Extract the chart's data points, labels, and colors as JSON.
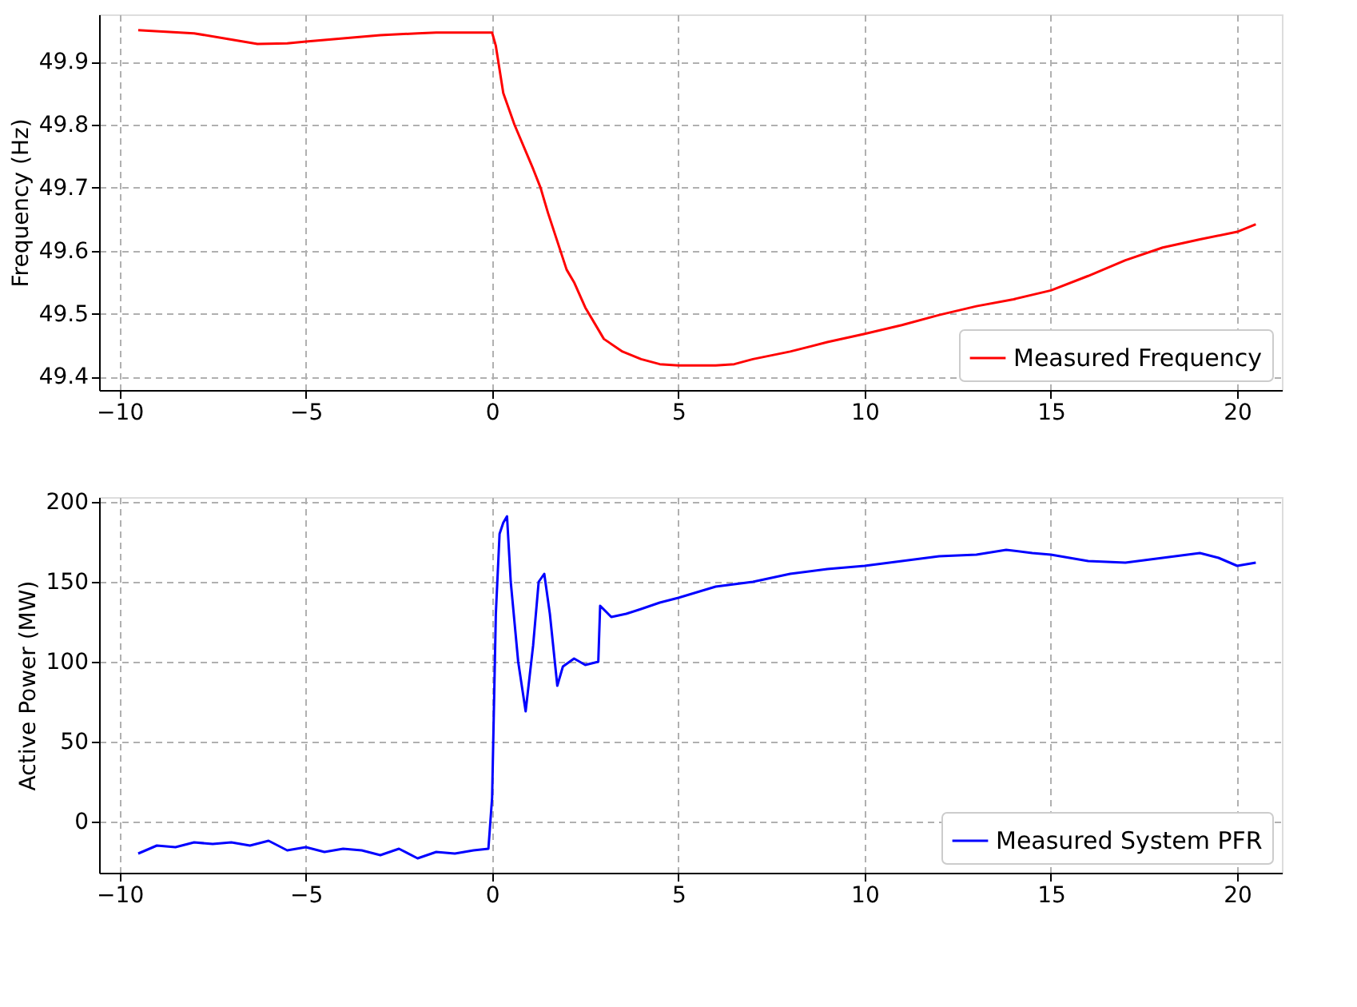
{
  "chart_data": [
    {
      "type": "line",
      "ylabel": "Frequency (Hz)",
      "xlim": [
        -10.55,
        21.2
      ],
      "xticks": [
        -10,
        -5,
        0,
        5,
        10,
        15,
        20
      ],
      "ylim": [
        49.379,
        49.975
      ],
      "yticks": [
        49.4,
        49.5,
        49.6,
        49.7,
        49.8,
        49.9
      ],
      "grid": true,
      "legend": "bottom right",
      "line_style": "solid",
      "series": [
        {
          "name": "Measured Frequency",
          "color": "#ff0000",
          "x": [
            -9.5,
            -8,
            -7,
            -6.3,
            -5.5,
            -5,
            -4,
            -3,
            -2,
            -1.5,
            -0.5,
            0,
            0.1,
            0.3,
            0.6,
            1.1,
            1.3,
            1.5,
            2,
            2.2,
            2.5,
            3,
            3.5,
            4,
            4.5,
            5,
            6,
            6.5,
            7,
            8,
            9,
            10,
            11,
            12,
            13,
            14,
            15,
            16,
            17,
            18,
            19,
            20,
            20.5
          ],
          "values": [
            49.95,
            49.945,
            49.935,
            49.928,
            49.929,
            49.932,
            49.937,
            49.942,
            49.945,
            49.946,
            49.946,
            49.946,
            49.925,
            49.85,
            49.8,
            49.73,
            49.7,
            49.66,
            49.57,
            49.55,
            49.51,
            49.46,
            49.44,
            49.428,
            49.42,
            49.418,
            49.418,
            49.42,
            49.428,
            49.44,
            49.455,
            49.468,
            49.482,
            49.498,
            49.512,
            49.523,
            49.537,
            49.56,
            49.585,
            49.605,
            49.618,
            49.63,
            49.642
          ]
        }
      ]
    },
    {
      "type": "line",
      "ylabel": "Active Power (MW)",
      "xlim": [
        -10.55,
        21.2
      ],
      "xticks": [
        -10,
        -5,
        0,
        5,
        10,
        15,
        20
      ],
      "ylim": [
        -32,
        203
      ],
      "yticks": [
        0,
        50,
        100,
        150,
        200
      ],
      "grid": true,
      "legend": "bottom right",
      "line_style": "solid",
      "series": [
        {
          "name": "Measured System PFR",
          "color": "#0000ff",
          "x": [
            -9.5,
            -9,
            -8.5,
            -8,
            -7.5,
            -7,
            -6.5,
            -6,
            -5.5,
            -5,
            -4.5,
            -4,
            -3.5,
            -3,
            -2.5,
            -2,
            -1.5,
            -1,
            -0.5,
            -0.1,
            0,
            0.1,
            0.2,
            0.3,
            0.4,
            0.5,
            0.7,
            0.9,
            1.1,
            1.25,
            1.4,
            1.55,
            1.75,
            1.9,
            2.2,
            2.5,
            2.85,
            2.9,
            3.2,
            3.6,
            4,
            4.5,
            5,
            6,
            7,
            8,
            9,
            10,
            11,
            12,
            13,
            13.8,
            14.5,
            15,
            16,
            17,
            18,
            19,
            19.5,
            20,
            20.5
          ],
          "values": [
            -20,
            -15,
            -16,
            -13,
            -14,
            -13,
            -15,
            -12,
            -18,
            -16,
            -19,
            -17,
            -18,
            -21,
            -17,
            -23,
            -19,
            -20,
            -18,
            -17,
            15,
            130,
            180,
            187,
            191,
            150,
            100,
            69,
            110,
            150,
            155,
            130,
            85,
            97,
            102,
            98,
            100,
            135,
            128,
            130,
            133,
            137,
            140,
            147,
            150,
            155,
            158,
            160,
            163,
            166,
            167,
            170,
            168,
            167,
            163,
            162,
            165,
            168,
            165,
            160,
            162
          ]
        }
      ]
    }
  ]
}
